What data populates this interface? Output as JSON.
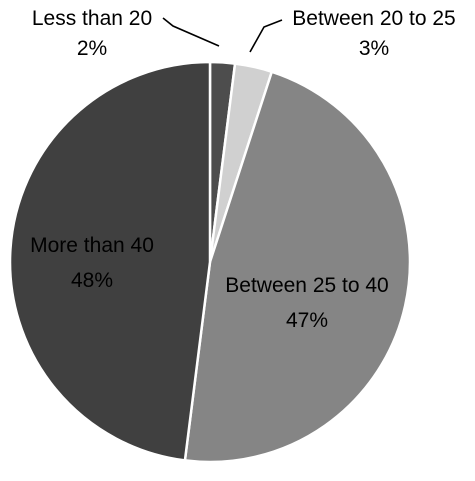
{
  "chart_data": {
    "type": "pie",
    "title": "",
    "slices": [
      {
        "label": "Less than 20",
        "value": 2,
        "value_label": "2%",
        "color": "#4d4d4d"
      },
      {
        "label": "Between 20 to 25",
        "value": 3,
        "value_label": "3%",
        "color": "#d0d0d0"
      },
      {
        "label": "Between 25 to 40",
        "value": 47,
        "value_label": "47%",
        "color": "#858585"
      },
      {
        "label": "More than 40",
        "value": 48,
        "value_label": "48%",
        "color": "#404040"
      }
    ],
    "start_angle": "12 o'clock",
    "direction": "clockwise",
    "legend": "none"
  }
}
